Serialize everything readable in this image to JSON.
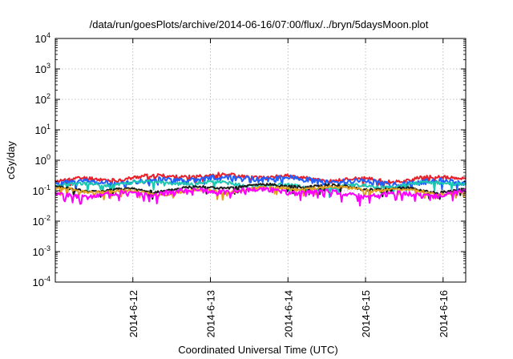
{
  "chart_data": {
    "type": "line",
    "title": "/data/run/goesPlots/archive/2014-06-16/07:00/flux/../bryn/5daysMoon.plot",
    "xlabel": "Coordinated Universal Time (UTC)",
    "ylabel": "cGy/day",
    "x_range": [
      "2014-06-11 00:00",
      "2014-06-16 07:00"
    ],
    "x_ticks": [
      "2014-6-12",
      "2014-6-13",
      "2014-6-14",
      "2014-6-15",
      "2014-6-16"
    ],
    "y_scale": "log",
    "ylim": [
      0.0001,
      10000
    ],
    "y_ticks": [
      {
        "base": "10",
        "exp": "-4"
      },
      {
        "base": "10",
        "exp": "-3"
      },
      {
        "base": "10",
        "exp": "-2"
      },
      {
        "base": "10",
        "exp": "-1"
      },
      {
        "base": "10",
        "exp": "0"
      },
      {
        "base": "10",
        "exp": "1"
      },
      {
        "base": "10",
        "exp": "2"
      },
      {
        "base": "10",
        "exp": "3"
      },
      {
        "base": "10",
        "exp": "4"
      }
    ],
    "grid": true,
    "legend": "none",
    "series": [
      {
        "color": "#e8202a",
        "level": 0.27,
        "noise": 0.14,
        "seed": 11
      },
      {
        "color": "#1f5fff",
        "level": 0.22,
        "noise": 0.22,
        "seed": 23
      },
      {
        "color": "#1ec7b0",
        "level": 0.16,
        "noise": 0.12,
        "seed": 37
      },
      {
        "color": "#1a1a1a",
        "level": 0.125,
        "noise": 0.1,
        "seed": 41
      },
      {
        "color": "#e0a020",
        "level": 0.105,
        "noise": 0.1,
        "seed": 53
      },
      {
        "color": "#ff00ff",
        "level": 0.088,
        "noise": 0.18,
        "seed": 67
      }
    ]
  }
}
